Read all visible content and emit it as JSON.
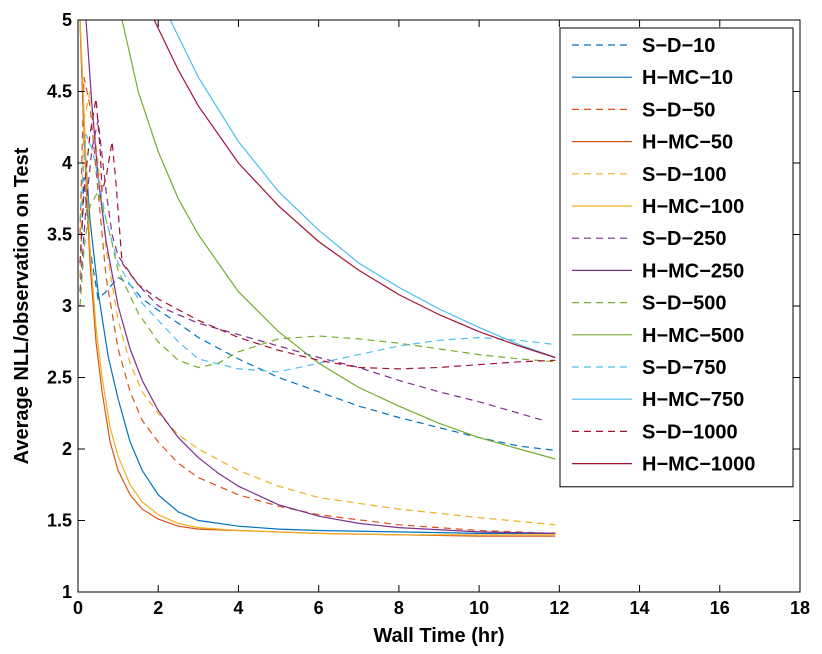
{
  "chart_data": {
    "type": "line",
    "title": "",
    "xlabel": "Wall Time (hr)",
    "ylabel": "Average NLL/observation on Test",
    "xlim": [
      0,
      18
    ],
    "ylim": [
      1,
      5
    ],
    "xticks": [
      "0",
      "2",
      "4",
      "6",
      "8",
      "10",
      "12",
      "14",
      "16",
      "18"
    ],
    "yticks": [
      "1",
      "1.5",
      "2",
      "2.5",
      "3",
      "3.5",
      "4",
      "4.5",
      "5"
    ],
    "grid": false,
    "legend_position": "top-right",
    "series": [
      {
        "name": "S−D−10",
        "style": "dashed",
        "color": "#0072BD",
        "x": [
          0.05,
          0.15,
          0.3,
          0.5,
          0.7,
          1.0,
          1.3,
          1.6,
          2.0,
          2.5,
          3.0,
          4.0,
          5.0,
          6.0,
          7.0,
          8.0,
          9.0,
          10.0,
          11.0,
          11.9
        ],
        "y": [
          3.2,
          3.9,
          3.4,
          3.05,
          3.1,
          3.2,
          3.15,
          3.05,
          2.97,
          2.88,
          2.78,
          2.63,
          2.5,
          2.4,
          2.3,
          2.22,
          2.15,
          2.08,
          2.02,
          1.99
        ]
      },
      {
        "name": "H−MC−10",
        "style": "solid",
        "color": "#0072BD",
        "x": [
          0.05,
          0.15,
          0.3,
          0.5,
          0.75,
          1.0,
          1.3,
          1.6,
          2.0,
          2.5,
          3.0,
          4.0,
          5.0,
          6.0,
          8.0,
          10.0,
          11.9
        ],
        "y": [
          5.0,
          4.2,
          3.6,
          3.1,
          2.65,
          2.35,
          2.05,
          1.85,
          1.68,
          1.56,
          1.5,
          1.46,
          1.44,
          1.43,
          1.42,
          1.41,
          1.41
        ]
      },
      {
        "name": "S−D−50",
        "style": "dashed",
        "color": "#D95319",
        "x": [
          0.05,
          0.15,
          0.3,
          0.5,
          0.7,
          1.0,
          1.3,
          1.6,
          2.0,
          2.5,
          3.0,
          4.0,
          5.0,
          6.0,
          8.0,
          10.0,
          11.9
        ],
        "y": [
          3.5,
          4.6,
          4.4,
          3.8,
          3.2,
          2.7,
          2.4,
          2.2,
          2.05,
          1.9,
          1.8,
          1.68,
          1.6,
          1.54,
          1.47,
          1.43,
          1.41
        ]
      },
      {
        "name": "H−MC−50",
        "style": "solid",
        "color": "#D95319",
        "x": [
          0.05,
          0.1,
          0.2,
          0.3,
          0.45,
          0.6,
          0.8,
          1.0,
          1.3,
          1.6,
          2.0,
          2.5,
          3.0,
          4.0,
          6.0,
          8.0,
          10.0,
          11.9
        ],
        "y": [
          5.0,
          4.6,
          3.9,
          3.3,
          2.75,
          2.4,
          2.05,
          1.85,
          1.68,
          1.58,
          1.51,
          1.46,
          1.44,
          1.43,
          1.41,
          1.4,
          1.39,
          1.39
        ]
      },
      {
        "name": "S−D−100",
        "style": "dashed",
        "color": "#EDB120",
        "x": [
          0.05,
          0.15,
          0.3,
          0.5,
          0.7,
          1.0,
          1.3,
          1.6,
          2.0,
          2.5,
          3.0,
          4.0,
          5.0,
          6.0,
          8.0,
          10.0,
          11.9
        ],
        "y": [
          3.2,
          4.3,
          4.5,
          4.0,
          3.4,
          2.9,
          2.6,
          2.4,
          2.25,
          2.1,
          2.0,
          1.85,
          1.74,
          1.66,
          1.58,
          1.52,
          1.47
        ]
      },
      {
        "name": "H−MC−100",
        "style": "solid",
        "color": "#EDB120",
        "x": [
          0.05,
          0.1,
          0.2,
          0.3,
          0.45,
          0.6,
          0.8,
          1.0,
          1.3,
          1.6,
          2.0,
          2.5,
          3.0,
          4.0,
          6.0,
          8.0,
          10.0,
          11.9
        ],
        "y": [
          5.0,
          4.7,
          4.0,
          3.4,
          2.85,
          2.5,
          2.15,
          1.95,
          1.75,
          1.63,
          1.54,
          1.48,
          1.45,
          1.43,
          1.41,
          1.4,
          1.4,
          1.4
        ]
      },
      {
        "name": "S−D−250",
        "style": "dashed",
        "color": "#7E2F8E",
        "x": [
          0.05,
          0.2,
          0.35,
          0.5,
          0.6,
          0.7,
          0.85,
          1.0,
          1.5,
          2.0,
          3.0,
          4.0,
          5.0,
          6.0,
          7.0,
          8.0,
          9.0,
          10.0,
          11.0,
          11.6
        ],
        "y": [
          3.1,
          3.7,
          4.1,
          4.3,
          4.05,
          3.8,
          3.5,
          3.35,
          3.15,
          3.0,
          2.88,
          2.8,
          2.72,
          2.64,
          2.57,
          2.48,
          2.4,
          2.33,
          2.25,
          2.2
        ]
      },
      {
        "name": "H−MC−250",
        "style": "solid",
        "color": "#7E2F8E",
        "x": [
          0.2,
          0.35,
          0.5,
          0.7,
          1.0,
          1.3,
          1.6,
          2.0,
          2.5,
          3.0,
          3.5,
          4.0,
          5.0,
          6.0,
          7.0,
          8.0,
          10.0,
          11.9
        ],
        "y": [
          5.0,
          4.4,
          3.9,
          3.45,
          3.0,
          2.7,
          2.48,
          2.27,
          2.08,
          1.94,
          1.83,
          1.74,
          1.61,
          1.53,
          1.48,
          1.45,
          1.42,
          1.41
        ]
      },
      {
        "name": "S−D−500",
        "style": "dashed",
        "color": "#77AC30",
        "x": [
          0.05,
          0.15,
          0.3,
          0.5,
          0.8,
          1.0,
          1.5,
          2.0,
          2.5,
          3.0,
          3.5,
          4.0,
          5.0,
          6.0,
          7.0,
          8.0,
          9.0,
          10.0,
          11.0,
          11.9
        ],
        "y": [
          3.0,
          3.4,
          3.7,
          3.8,
          3.5,
          3.25,
          2.95,
          2.75,
          2.62,
          2.57,
          2.6,
          2.68,
          2.77,
          2.79,
          2.77,
          2.74,
          2.7,
          2.66,
          2.63,
          2.61
        ]
      },
      {
        "name": "H−MC−500",
        "style": "solid",
        "color": "#77AC30",
        "x": [
          1.1,
          1.5,
          2.0,
          2.5,
          3.0,
          4.0,
          5.0,
          6.0,
          7.0,
          8.0,
          9.0,
          10.0,
          11.0,
          11.9
        ],
        "y": [
          5.0,
          4.5,
          4.08,
          3.75,
          3.5,
          3.1,
          2.82,
          2.6,
          2.43,
          2.3,
          2.18,
          2.08,
          2.0,
          1.93
        ]
      },
      {
        "name": "S−D−750",
        "style": "dashed",
        "color": "#4DBEEE",
        "x": [
          0.05,
          0.2,
          0.35,
          0.5,
          0.7,
          1.0,
          1.5,
          2.0,
          2.5,
          3.0,
          4.0,
          5.0,
          6.0,
          7.0,
          8.0,
          9.0,
          10.0,
          11.0,
          11.9
        ],
        "y": [
          3.6,
          4.2,
          4.1,
          3.9,
          3.6,
          3.3,
          3.05,
          2.9,
          2.75,
          2.63,
          2.56,
          2.54,
          2.6,
          2.66,
          2.72,
          2.76,
          2.78,
          2.76,
          2.73
        ]
      },
      {
        "name": "H−MC−750",
        "style": "solid",
        "color": "#4DBEEE",
        "x": [
          2.3,
          3.0,
          4.0,
          5.0,
          6.0,
          7.0,
          8.0,
          9.0,
          10.0,
          11.0,
          11.9
        ],
        "y": [
          5.0,
          4.6,
          4.15,
          3.8,
          3.53,
          3.3,
          3.13,
          2.98,
          2.85,
          2.73,
          2.64
        ]
      },
      {
        "name": "S−D−1000",
        "style": "dashed",
        "color": "#A2142F",
        "x": [
          0.05,
          0.15,
          0.3,
          0.45,
          0.55,
          0.6,
          0.7,
          0.85,
          0.95,
          1.1,
          1.5,
          2.0,
          3.0,
          4.0,
          5.0,
          6.0,
          7.0,
          8.0,
          9.0,
          10.0,
          11.0,
          11.9
        ],
        "y": [
          3.3,
          3.8,
          4.2,
          4.45,
          4.1,
          3.8,
          3.9,
          4.15,
          3.85,
          3.3,
          3.15,
          3.05,
          2.9,
          2.78,
          2.69,
          2.62,
          2.57,
          2.56,
          2.57,
          2.59,
          2.61,
          2.62
        ]
      },
      {
        "name": "H−MC−1000",
        "style": "solid",
        "color": "#A2142F",
        "x": [
          1.9,
          2.5,
          3.0,
          4.0,
          5.0,
          6.0,
          7.0,
          8.0,
          9.0,
          10.0,
          11.0,
          11.9
        ],
        "y": [
          5.0,
          4.65,
          4.4,
          4.0,
          3.7,
          3.45,
          3.25,
          3.08,
          2.94,
          2.82,
          2.72,
          2.64
        ]
      }
    ]
  }
}
